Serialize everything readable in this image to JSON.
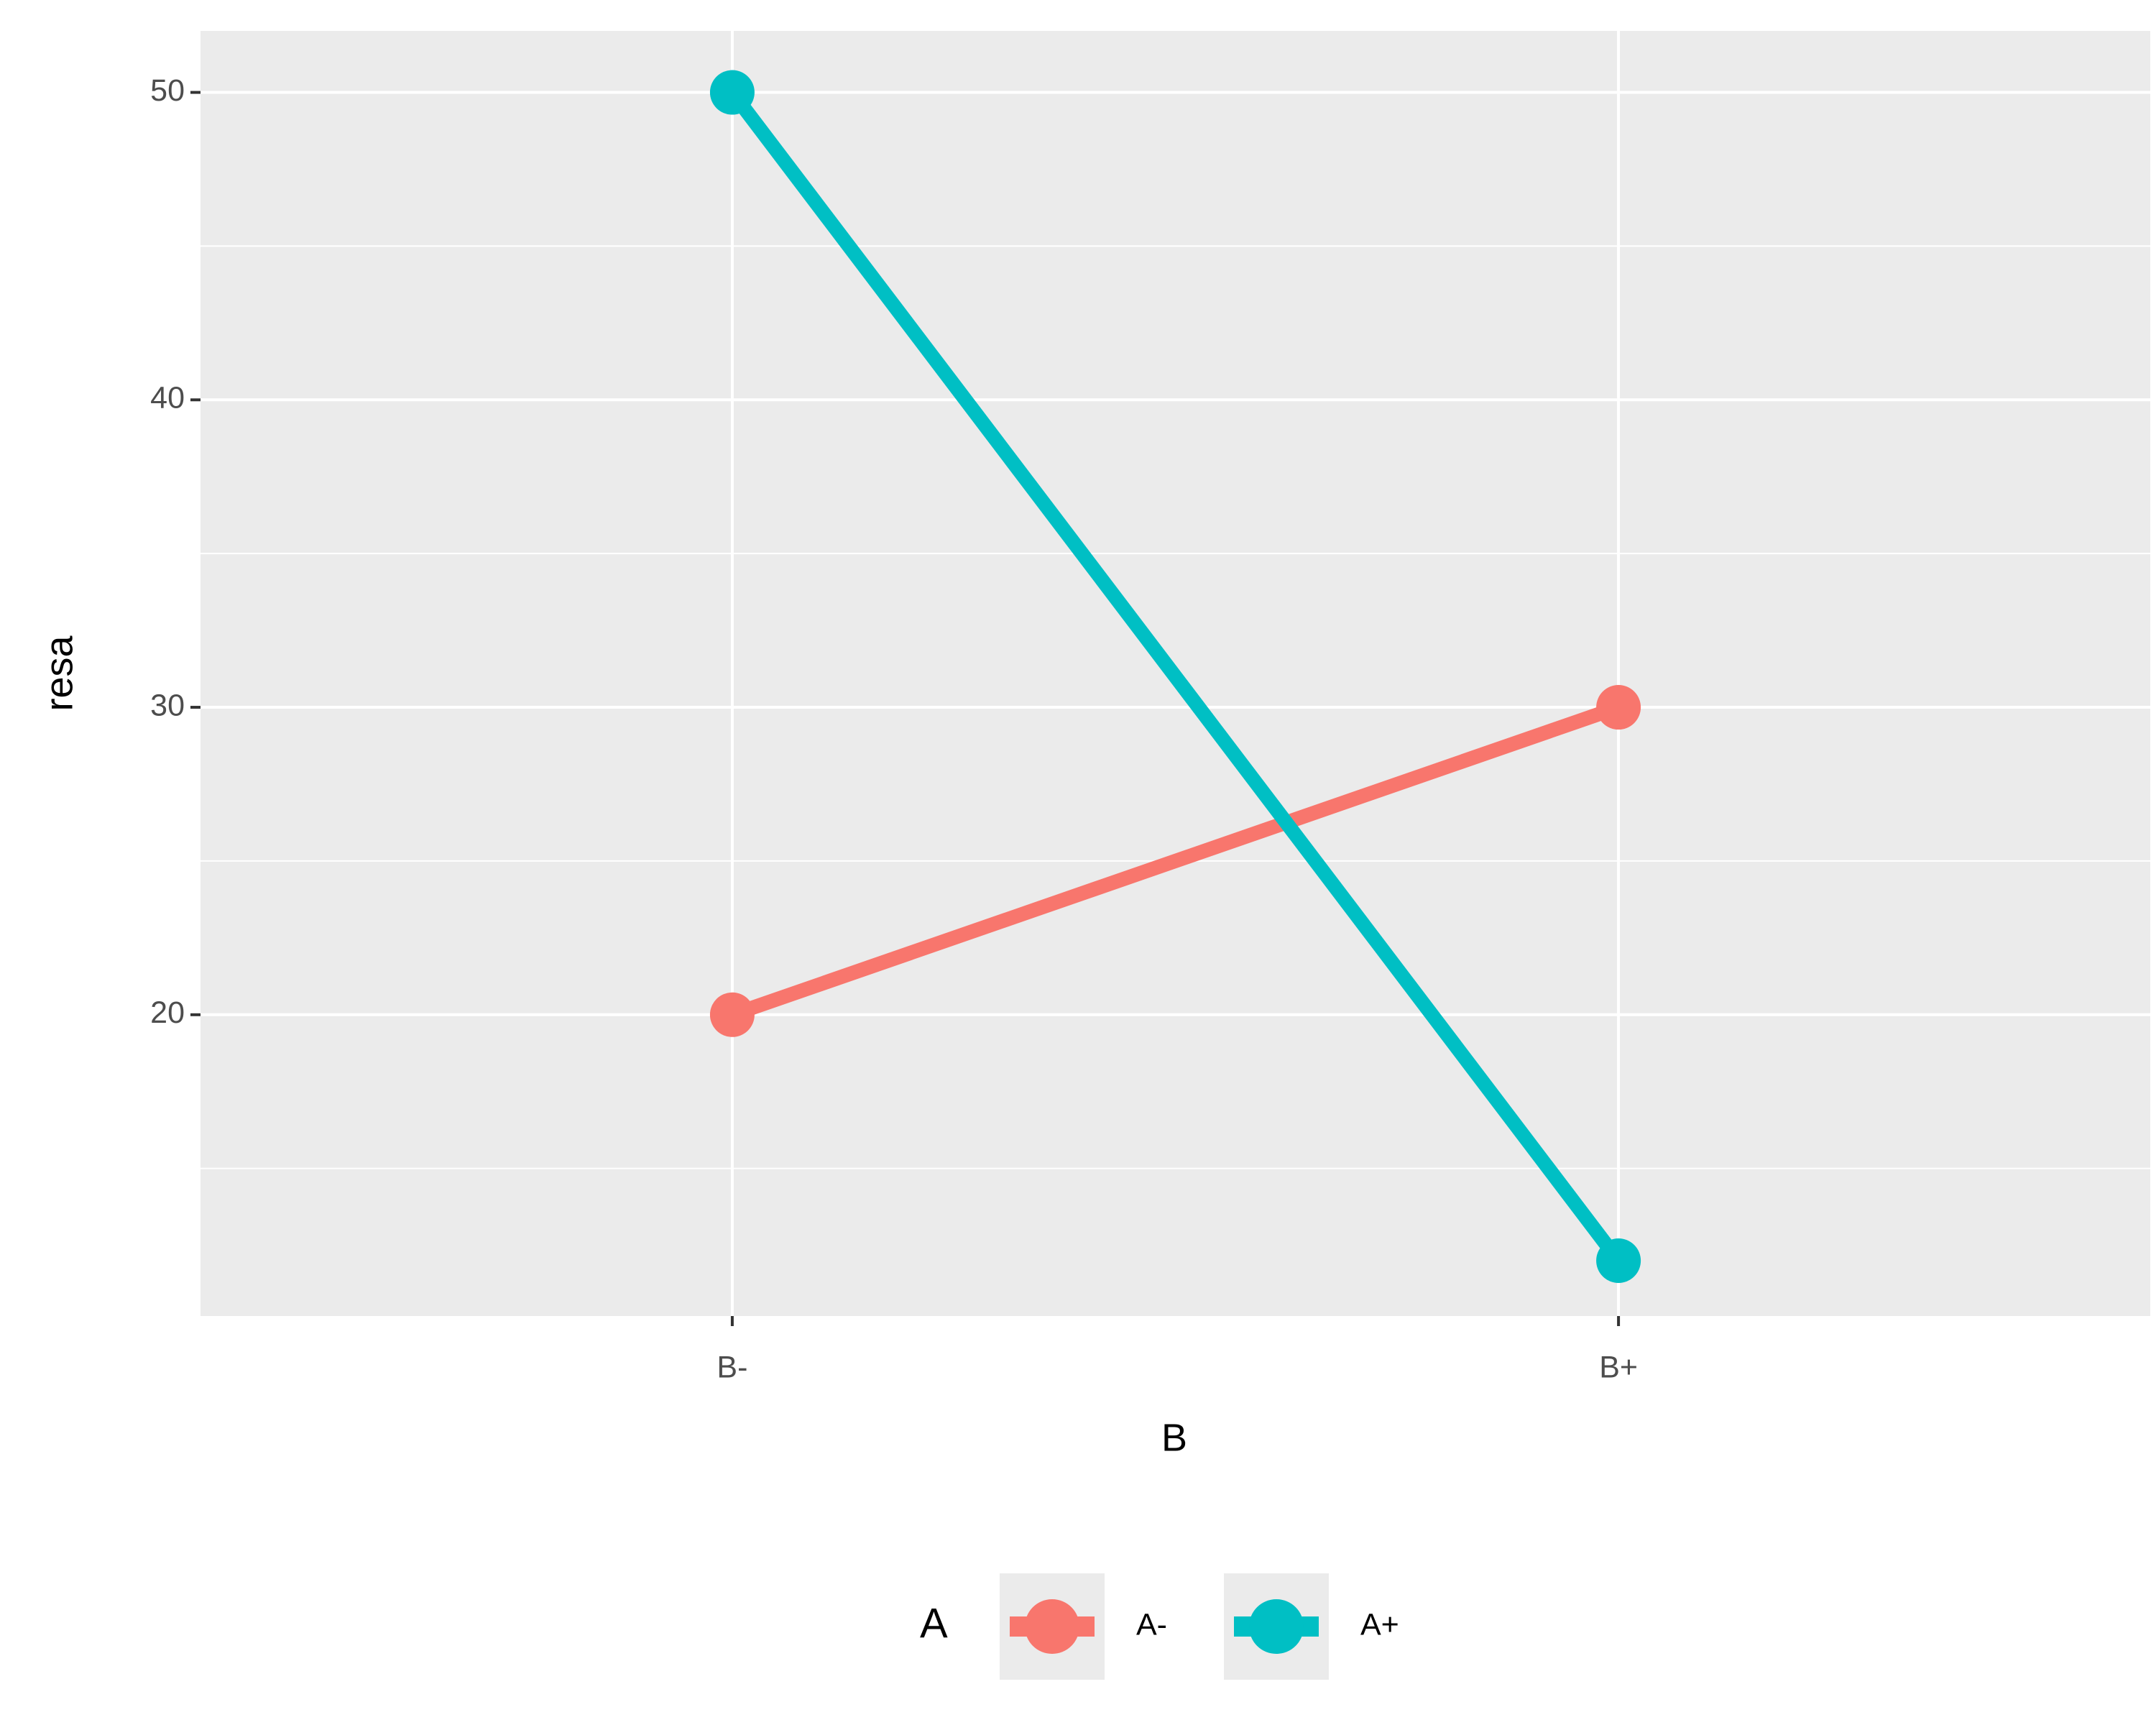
{
  "chart_data": {
    "type": "line",
    "x_label": "B",
    "y_label": "resa",
    "categories": [
      "B-",
      "B+"
    ],
    "series": [
      {
        "name": "A-",
        "color": "#f8766d",
        "values": [
          20,
          30
        ]
      },
      {
        "name": "A+",
        "color": "#00bfc4",
        "values": [
          50,
          12
        ]
      }
    ],
    "ylim": [
      10.2,
      52
    ],
    "yticks": [
      20,
      30,
      40,
      50
    ],
    "minor_yticks": [
      15,
      25,
      35,
      45
    ],
    "grid": true,
    "legend_title": "A",
    "legend_position": "bottom"
  }
}
